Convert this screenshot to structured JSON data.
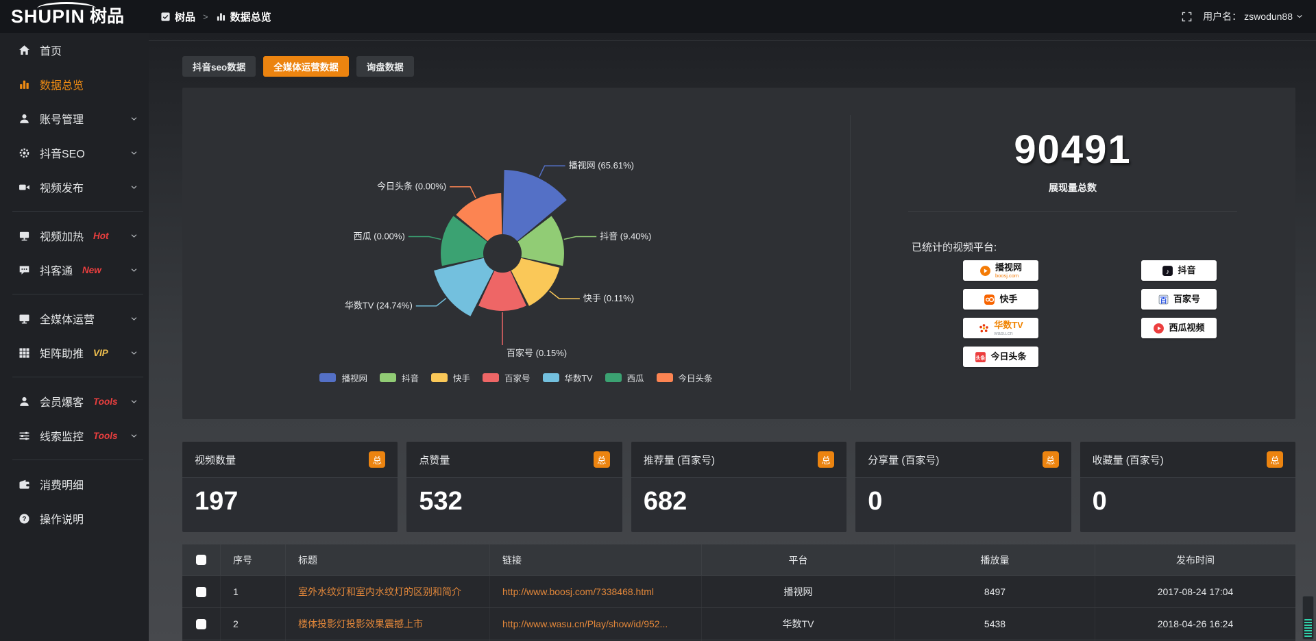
{
  "colors": {
    "accent_orange": "#ec8410",
    "badge_red": "#ed3f3f",
    "badge_gold": "#f3c24f",
    "link_orange": "#e2873a",
    "panel_bg": "#2e3034"
  },
  "header": {
    "logo_en": "SHUPIN",
    "logo_cn": "树品",
    "breadcrumb": {
      "root": "树品",
      "sep": ">",
      "current": "数据总览"
    },
    "username_label": "用户名：",
    "username": "zswodun88"
  },
  "sidebar": {
    "items": [
      {
        "id": "home",
        "icon": "home",
        "label": "首页"
      },
      {
        "id": "overview",
        "icon": "bars",
        "label": "数据总览",
        "active": true
      },
      {
        "id": "account",
        "icon": "user",
        "label": "账号管理",
        "children": true
      },
      {
        "id": "douyin-seo",
        "icon": "gear",
        "label": "抖音SEO",
        "children": true
      },
      {
        "id": "publish",
        "icon": "camera",
        "label": "视频发布",
        "children": true
      },
      {
        "divider": true
      },
      {
        "id": "heat",
        "icon": "board",
        "label": "视频加热",
        "badge": "Hot",
        "badge_color": "#ed3f3f",
        "children": true
      },
      {
        "id": "douketong",
        "icon": "chat",
        "label": "抖客通",
        "badge": "New",
        "badge_color": "#ed3f3f",
        "children": true
      },
      {
        "divider": true
      },
      {
        "id": "media",
        "icon": "monitor",
        "label": "全媒体运营",
        "children": true
      },
      {
        "id": "matrix",
        "icon": "grid",
        "label": "矩阵助推",
        "badge": "VIP",
        "badge_color": "#f3c24f",
        "children": true
      },
      {
        "divider": true
      },
      {
        "id": "member",
        "icon": "user",
        "label": "会员爆客",
        "badge": "Tools",
        "badge_color": "#ed3f3f",
        "children": true
      },
      {
        "id": "clue",
        "icon": "sliders",
        "label": "线索监控",
        "badge": "Tools",
        "badge_color": "#ed3f3f",
        "children": true
      },
      {
        "divider": true
      },
      {
        "id": "expense",
        "icon": "wallet",
        "label": "消费明细"
      },
      {
        "id": "help",
        "icon": "help",
        "label": "操作说明"
      }
    ]
  },
  "tabs": [
    {
      "label": "抖音seo数据",
      "active": false
    },
    {
      "label": "全媒体运营数据",
      "active": true
    },
    {
      "label": "询盘数据",
      "active": false
    }
  ],
  "chart_data": {
    "type": "pie",
    "variant": "nightingale-rose",
    "title": "",
    "categories": [
      "播视网",
      "抖音",
      "快手",
      "百家号",
      "华数TV",
      "西瓜",
      "今日头条"
    ],
    "values": [
      65.61,
      9.4,
      0.11,
      0.15,
      24.74,
      0.0,
      0.0
    ],
    "unit": "%",
    "labels": [
      "播视网 (65.61%)",
      "抖音 (9.40%)",
      "快手 (0.11%)",
      "百家号 (0.15%)",
      "华数TV (24.74%)",
      "西瓜 (0.00%)",
      "今日头条 (0.00%)"
    ],
    "colors": [
      "#5470c6",
      "#91cc75",
      "#fac858",
      "#ee6666",
      "#73c0de",
      "#3ba272",
      "#fc8452"
    ],
    "legend": [
      "播视网",
      "抖音",
      "快手",
      "百家号",
      "华数TV",
      "西瓜",
      "今日头条"
    ],
    "legend_position": "bottom",
    "donut_hole": true
  },
  "summary": {
    "total": "90491",
    "total_label": "展现量总数",
    "platforms_label": "已统计的视频平台:",
    "platforms": [
      {
        "name": "播视网",
        "sub": "boosj.com",
        "sub_color": "#f47b06",
        "icon": "boosj",
        "name_color": "#151515"
      },
      {
        "name": "快手",
        "sub": "",
        "icon": "kuaishou",
        "name_color": "#151515"
      },
      {
        "name": "华数TV",
        "sub": "wasu.cn",
        "sub_color": "#9aa0a6",
        "icon": "wasu",
        "name_color": "#f08300"
      },
      {
        "name": "今日头条",
        "sub": "",
        "icon": "toutiao",
        "name_color": "#151515"
      },
      {
        "name": "抖音",
        "sub": "",
        "icon": "douyin",
        "name_color": "#151515"
      },
      {
        "name": "百家号",
        "sub": "",
        "icon": "baijiahao",
        "name_color": "#151515"
      },
      {
        "name": "西瓜视频",
        "sub": "",
        "icon": "xigua",
        "name_color": "#151515"
      }
    ]
  },
  "stat_cards": [
    {
      "title": "视频数量",
      "badge": "总",
      "value": "197"
    },
    {
      "title": "点赞量",
      "badge": "总",
      "value": "532"
    },
    {
      "title": "推荐量 (百家号)",
      "badge": "总",
      "value": "682"
    },
    {
      "title": "分享量 (百家号)",
      "badge": "总",
      "value": "0"
    },
    {
      "title": "收藏量 (百家号)",
      "badge": "总",
      "value": "0"
    }
  ],
  "table": {
    "headers": [
      "序号",
      "标题",
      "链接",
      "平台",
      "播放量",
      "发布时间"
    ],
    "rows": [
      {
        "num": "1",
        "title": "室外水纹灯和室内水纹灯的区别和简介",
        "link": "http://www.boosj.com/7338468.html",
        "platform": "播视网",
        "plays": "8497",
        "time": "2017-08-24 17:04"
      },
      {
        "num": "2",
        "title": "楼体投影灯投影效果震撼上市",
        "link": "http://www.wasu.cn/Play/show/id/952...",
        "platform": "华数TV",
        "plays": "5438",
        "time": "2018-04-26 16:24"
      }
    ]
  }
}
